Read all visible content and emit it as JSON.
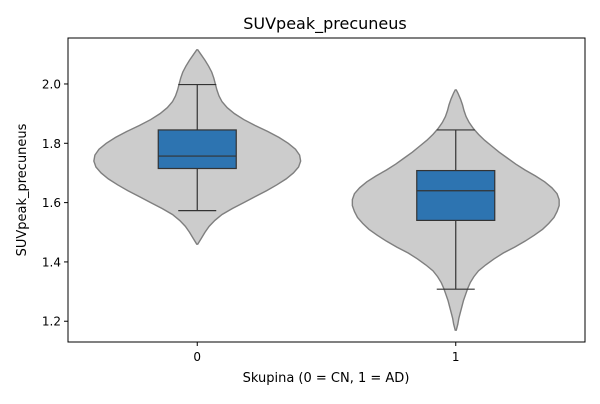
{
  "chart_data": {
    "type": "violin",
    "title": "SUVpeak_precuneus",
    "xlabel": "Skupina (0 = CN, 1 = AD)",
    "ylabel": "SUVpeak_precuneus",
    "categories": [
      "0",
      "1"
    ],
    "ylim": [
      1.13,
      2.155
    ],
    "yticks": [
      1.2,
      1.4,
      1.6,
      1.8,
      2.0
    ],
    "ytick_labels": [
      "1.2",
      "1.4",
      "1.6",
      "1.8",
      "2.0"
    ],
    "grid": false,
    "legend": "none",
    "colors": {
      "violin_fill": "#cccccc",
      "violin_edge": "#7f7f7f",
      "box_fill": "#2d74b1",
      "box_edge": "#333333"
    },
    "groups": [
      {
        "category": "0",
        "box": {
          "q1": 1.715,
          "median": 1.757,
          "q3": 1.845,
          "whisker_low": 1.573,
          "whisker_high": 1.998
        },
        "violin_min": 1.46,
        "violin_max": 2.115,
        "density": [
          [
            1.46,
            0.005
          ],
          [
            1.48,
            0.04
          ],
          [
            1.5,
            0.075
          ],
          [
            1.52,
            0.115
          ],
          [
            1.54,
            0.17
          ],
          [
            1.56,
            0.24
          ],
          [
            1.58,
            0.34
          ],
          [
            1.6,
            0.45
          ],
          [
            1.62,
            0.56
          ],
          [
            1.64,
            0.67
          ],
          [
            1.66,
            0.77
          ],
          [
            1.68,
            0.86
          ],
          [
            1.7,
            0.93
          ],
          [
            1.72,
            0.98
          ],
          [
            1.74,
            1.0
          ],
          [
            1.76,
            0.99
          ],
          [
            1.78,
            0.95
          ],
          [
            1.8,
            0.88
          ],
          [
            1.82,
            0.79
          ],
          [
            1.84,
            0.68
          ],
          [
            1.86,
            0.56
          ],
          [
            1.88,
            0.45
          ],
          [
            1.9,
            0.36
          ],
          [
            1.92,
            0.29
          ],
          [
            1.94,
            0.24
          ],
          [
            1.96,
            0.21
          ],
          [
            1.98,
            0.19
          ],
          [
            2.0,
            0.175
          ],
          [
            2.02,
            0.16
          ],
          [
            2.04,
            0.14
          ],
          [
            2.06,
            0.11
          ],
          [
            2.08,
            0.075
          ],
          [
            2.1,
            0.035
          ],
          [
            2.115,
            0.005
          ]
        ]
      },
      {
        "category": "1",
        "box": {
          "q1": 1.54,
          "median": 1.64,
          "q3": 1.708,
          "whisker_low": 1.308,
          "whisker_high": 1.845
        },
        "violin_min": 1.17,
        "violin_max": 1.98,
        "density": [
          [
            1.17,
            0.005
          ],
          [
            1.19,
            0.02
          ],
          [
            1.21,
            0.03
          ],
          [
            1.23,
            0.045
          ],
          [
            1.25,
            0.06
          ],
          [
            1.27,
            0.075
          ],
          [
            1.29,
            0.095
          ],
          [
            1.31,
            0.115
          ],
          [
            1.33,
            0.14
          ],
          [
            1.35,
            0.175
          ],
          [
            1.37,
            0.22
          ],
          [
            1.39,
            0.29
          ],
          [
            1.41,
            0.37
          ],
          [
            1.43,
            0.46
          ],
          [
            1.45,
            0.57
          ],
          [
            1.47,
            0.67
          ],
          [
            1.49,
            0.76
          ],
          [
            1.51,
            0.84
          ],
          [
            1.53,
            0.9
          ],
          [
            1.55,
            0.95
          ],
          [
            1.57,
            0.98
          ],
          [
            1.59,
            1.0
          ],
          [
            1.61,
            1.0
          ],
          [
            1.63,
            0.98
          ],
          [
            1.65,
            0.93
          ],
          [
            1.67,
            0.86
          ],
          [
            1.69,
            0.77
          ],
          [
            1.71,
            0.67
          ],
          [
            1.73,
            0.58
          ],
          [
            1.75,
            0.5
          ],
          [
            1.77,
            0.42
          ],
          [
            1.79,
            0.35
          ],
          [
            1.81,
            0.28
          ],
          [
            1.83,
            0.22
          ],
          [
            1.85,
            0.17
          ],
          [
            1.87,
            0.13
          ],
          [
            1.89,
            0.1
          ],
          [
            1.91,
            0.08
          ],
          [
            1.93,
            0.065
          ],
          [
            1.95,
            0.045
          ],
          [
            1.97,
            0.02
          ],
          [
            1.98,
            0.005
          ]
        ]
      }
    ]
  }
}
